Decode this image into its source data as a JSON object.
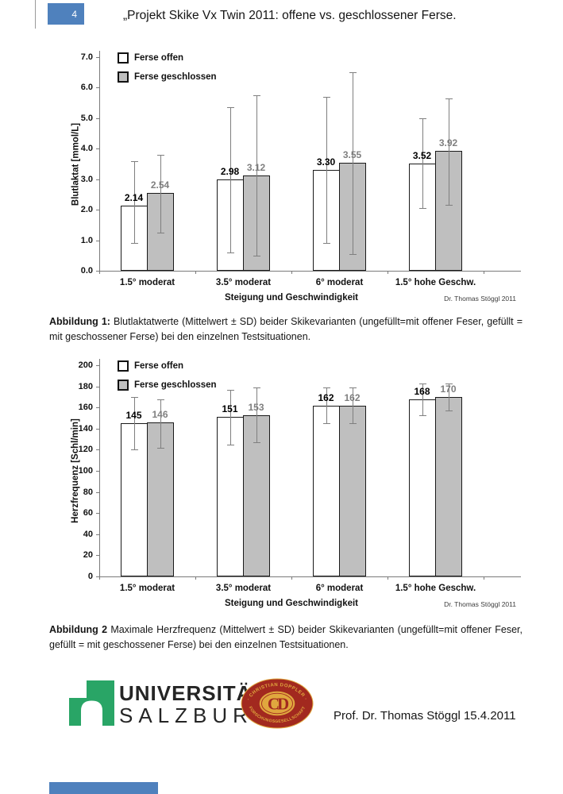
{
  "page": {
    "number": "4",
    "title": "„Projekt Skike Vx Twin 2011: offene vs. geschlossener Ferse.",
    "footer_signature": "Prof. Dr. Thomas Stöggl 15.4.2011"
  },
  "colors": {
    "accent_blue": "#4f81bd",
    "bar_open_fill": "#ffffff",
    "bar_closed_fill": "#bfbfbf",
    "bar_border": "#1a1a1a",
    "error_bar": "#7f7f7f",
    "value_label_open": "#000000",
    "value_label_closed": "#7f7f7f",
    "logo_green": "#29a566",
    "logo_red": "#a2291f",
    "logo_gold": "#e0a73e"
  },
  "captions": {
    "fig1_label": "Abbildung 1:",
    "fig1_text": " Blutlaktatwerte (Mittelwert ± SD) beider Skikevarianten (ungefüllt=mit offener Feser, gefüllt = mit geschossener Ferse) bei den einzelnen Testsituationen.",
    "fig2_label": "Abbildung 2",
    "fig2_text": "  Maximale Herzfrequenz (Mittelwert ± SD) beider Skikevarianten (ungefüllt=mit offener Feser, gefüllt = mit geschossener Ferse) bei den einzelnen Testsituationen."
  },
  "logos": {
    "university_line1": "UNIVERSITÄT",
    "university_line2": "SALZBURG",
    "cd_text_top": "· CHRISTIAN DOPPLER ·",
    "cd_text_bottom": "FORSCHUNGSGESELLSCHAFT",
    "cd_monogram": "CD"
  },
  "chart_data": [
    {
      "type": "bar",
      "title": "",
      "categories": [
        "1.5° moderat",
        "3.5° moderat",
        "6° moderat",
        "1.5° hohe Geschw."
      ],
      "series": [
        {
          "name": "Ferse offen",
          "fill": "open",
          "values": [
            2.14,
            2.98,
            3.3,
            3.52
          ],
          "labels": [
            "2.14",
            "2.98",
            "3.30",
            "3.52"
          ],
          "error_low": [
            0.9,
            0.6,
            0.9,
            2.05
          ],
          "error_high": [
            3.6,
            5.35,
            5.7,
            5.0
          ]
        },
        {
          "name": "Ferse geschlossen",
          "fill": "closed",
          "values": [
            2.54,
            3.12,
            3.55,
            3.92
          ],
          "labels": [
            "2.54",
            "3.12",
            "3.55",
            "3.92"
          ],
          "error_low": [
            1.25,
            0.5,
            0.55,
            2.15
          ],
          "error_high": [
            3.8,
            5.75,
            6.5,
            5.65
          ]
        }
      ],
      "xlabel": "Steigung und Geschwindigkeit",
      "ylabel": "Blutlaktat [mmol/L]",
      "ylim": [
        0,
        7
      ],
      "yticks": [
        "0.0",
        "1.0",
        "2.0",
        "3.0",
        "4.0",
        "5.0",
        "6.0",
        "7.0"
      ],
      "legend": [
        "Ferse offen",
        "Ferse geschlossen"
      ],
      "legend_position": "top-left",
      "grid": false,
      "error_bars": "±SD",
      "credit": "Dr. Thomas Stöggl 2011"
    },
    {
      "type": "bar",
      "title": "",
      "categories": [
        "1.5° moderat",
        "3.5° moderat",
        "6° moderat",
        "1.5° hohe Geschw."
      ],
      "series": [
        {
          "name": "Ferse offen",
          "fill": "open",
          "values": [
            145,
            151,
            162,
            168
          ],
          "labels": [
            "145",
            "151",
            "162",
            "168"
          ],
          "error_low": [
            120,
            125,
            145,
            153
          ],
          "error_high": [
            170,
            177,
            179,
            183
          ]
        },
        {
          "name": "Ferse geschlossen",
          "fill": "closed",
          "values": [
            146,
            153,
            162,
            170
          ],
          "labels": [
            "146",
            "153",
            "162",
            "170"
          ],
          "error_low": [
            122,
            127,
            145,
            157
          ],
          "error_high": [
            168,
            179,
            179,
            183
          ]
        }
      ],
      "xlabel": "Steigung und Geschwindigkeit",
      "ylabel": "Herzfrequenz [Schl/min]",
      "ylim": [
        0,
        200
      ],
      "yticks": [
        "0",
        "20",
        "40",
        "60",
        "80",
        "100",
        "120",
        "140",
        "160",
        "180",
        "200"
      ],
      "legend": [
        "Ferse offen",
        "Ferse geschlossen"
      ],
      "legend_position": "top-left",
      "grid": false,
      "error_bars": "±SD",
      "credit": "Dr. Thomas Stöggl 2011"
    }
  ]
}
